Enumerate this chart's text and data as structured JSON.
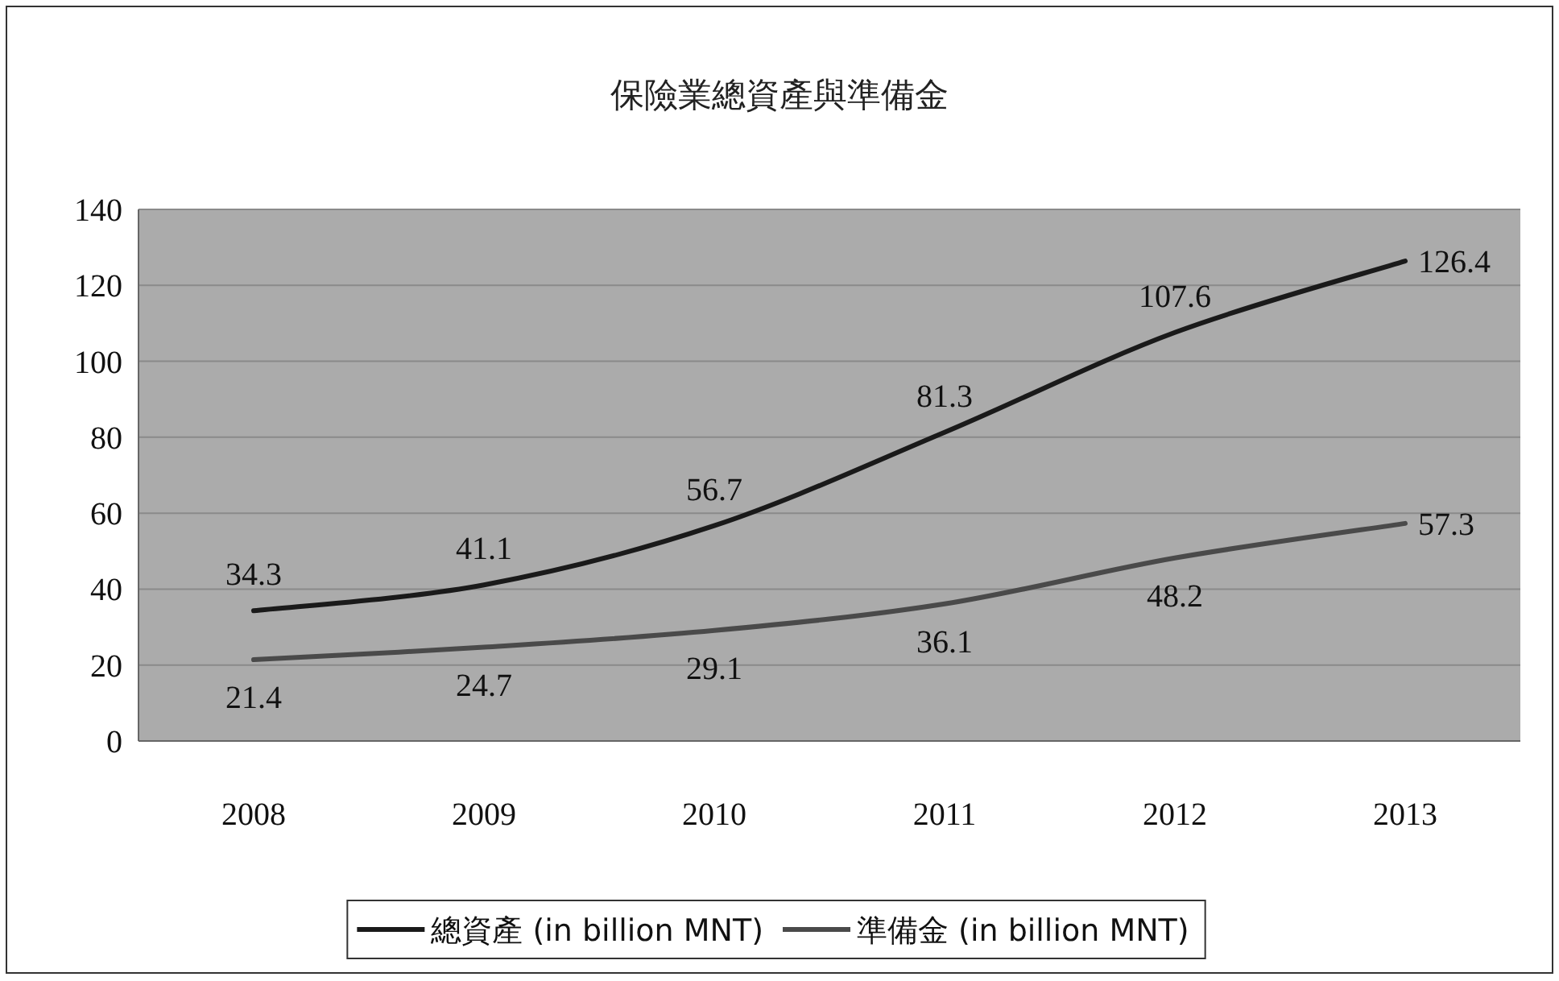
{
  "chart_data": {
    "type": "line",
    "title": "保險業總資產與準備金",
    "categories": [
      "2008",
      "2009",
      "2010",
      "2011",
      "2012",
      "2013"
    ],
    "series": [
      {
        "name": "總資產 (in billion MNT)",
        "color": "#1a1a1a",
        "values": [
          34.3,
          41.1,
          56.7,
          81.3,
          107.6,
          126.4
        ]
      },
      {
        "name": "準備金 (in billion MNT)",
        "color": "#4a4a4a",
        "values": [
          21.4,
          24.7,
          29.1,
          36.1,
          48.2,
          57.3
        ]
      }
    ],
    "ylim": [
      0,
      140
    ],
    "yticks": [
      0,
      20,
      40,
      60,
      80,
      100,
      120,
      140
    ],
    "grid": "y",
    "legend": "bottom",
    "data_labels": true
  }
}
